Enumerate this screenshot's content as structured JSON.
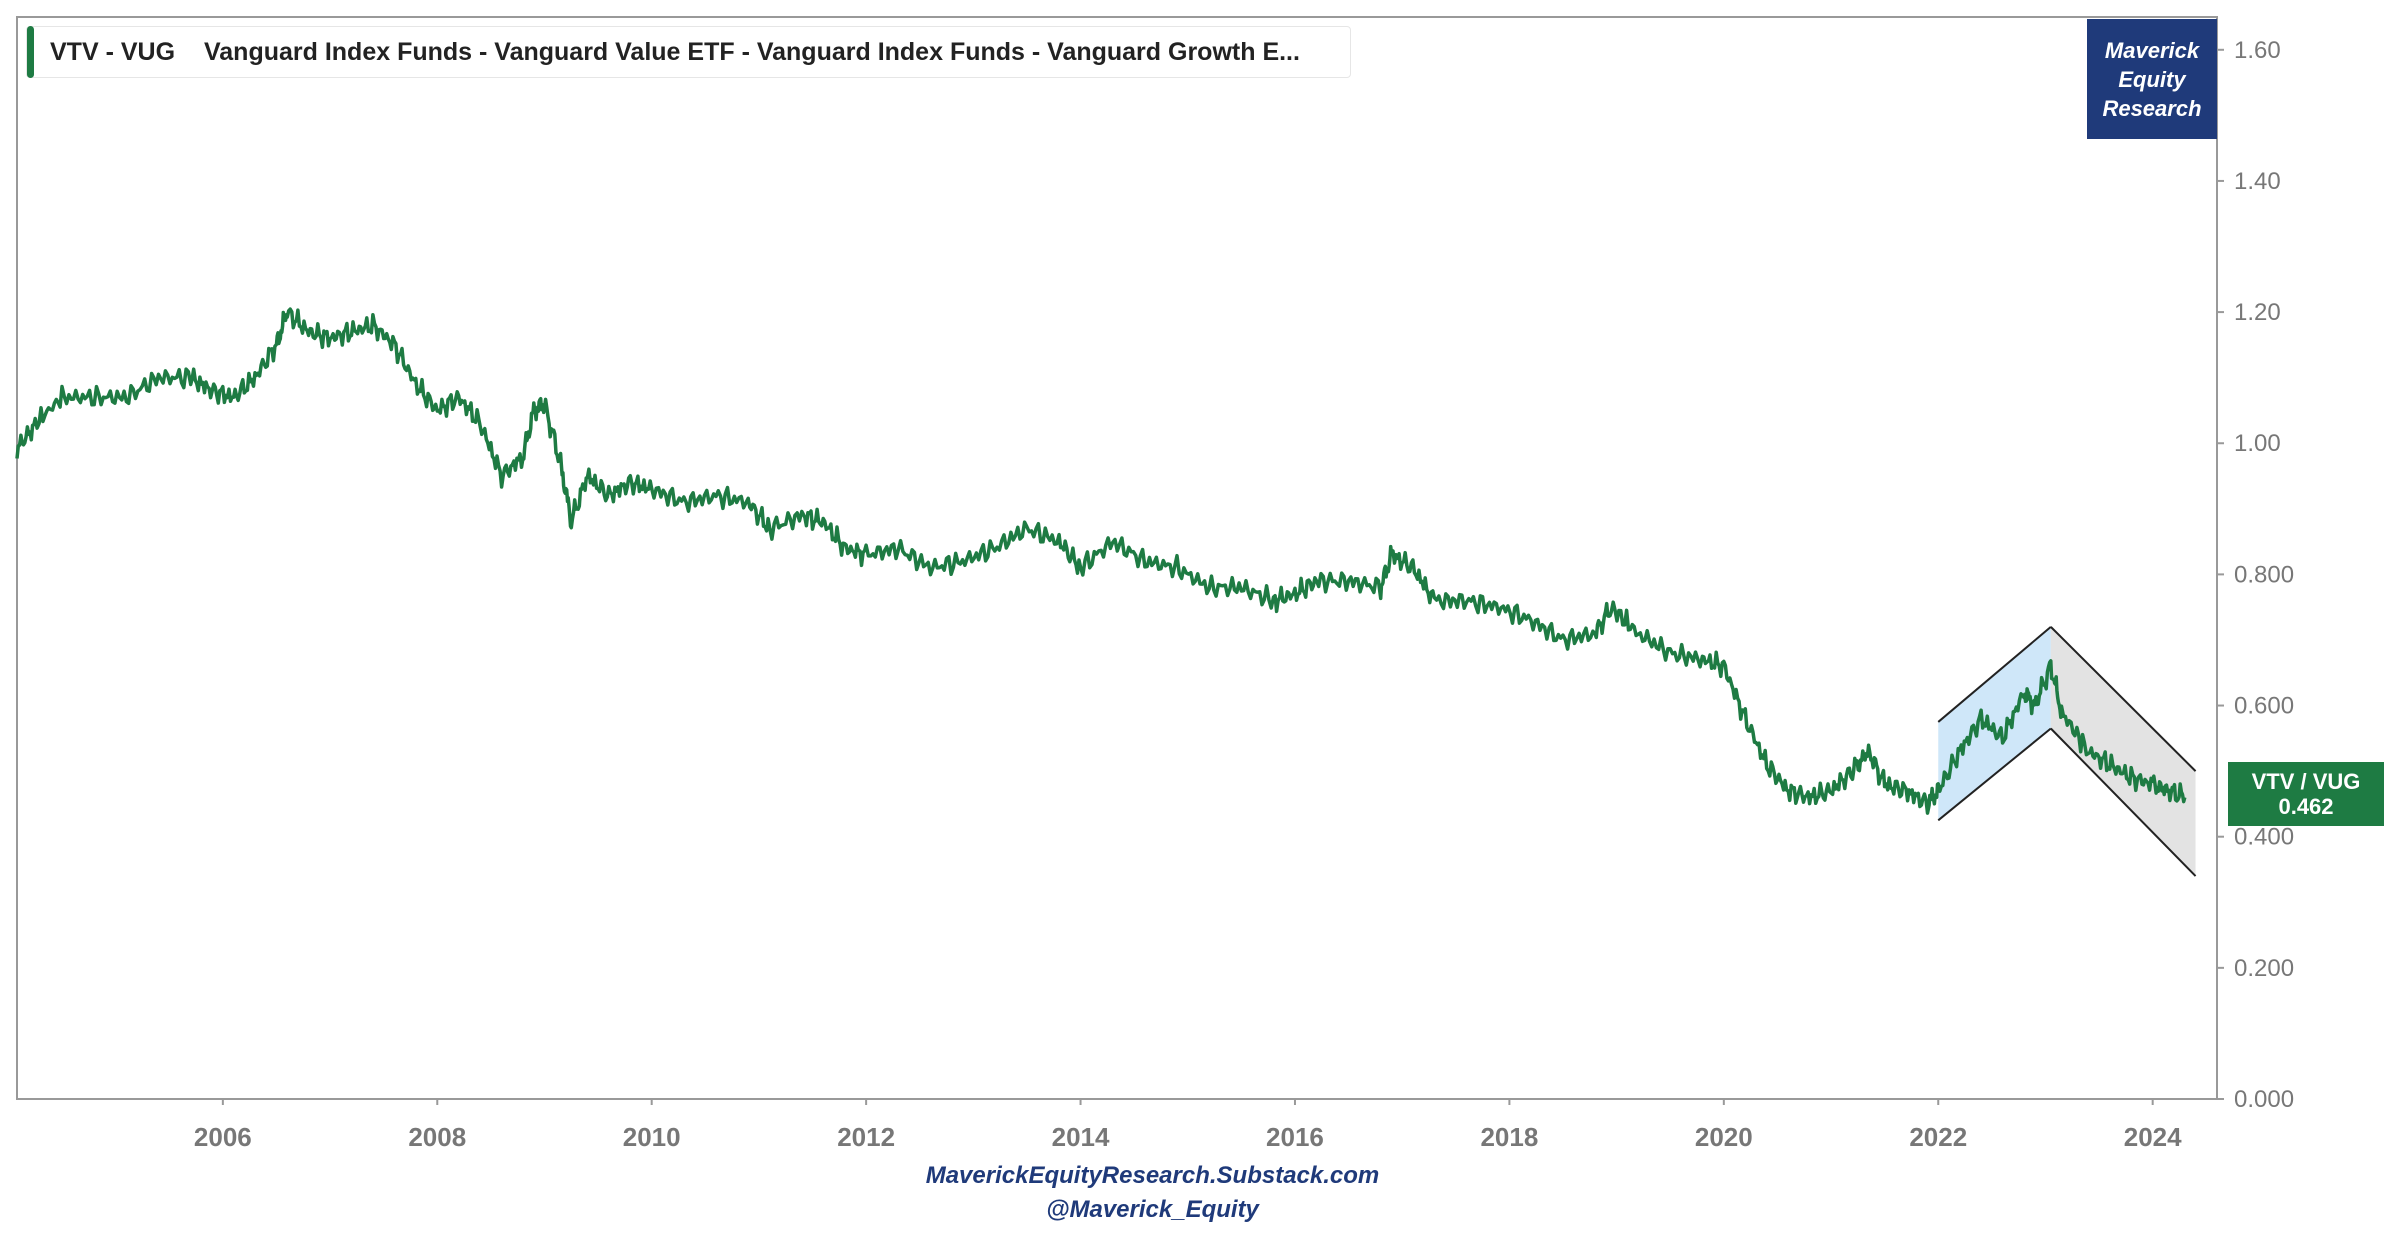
{
  "legend": {
    "ticker": "VTV - VUG",
    "name": "Vanguard Index Funds - Vanguard Value ETF - Vanguard Index Funds - Vanguard Growth E...",
    "color": "#1e7b43"
  },
  "brand": {
    "line1": "Maverick",
    "line2": "Equity",
    "line3": "Research",
    "color": "#1f3a7a"
  },
  "value_tag": {
    "label": "VTV / VUG",
    "value": "0.462"
  },
  "footer": {
    "line1": "MaverickEquityResearch.Substack.com",
    "line2": "@Maverick_Equity"
  },
  "chart_data": {
    "type": "line",
    "series": [
      {
        "name": "VTV / VUG",
        "color": "#1e7b43",
        "points": [
          [
            2004.08,
            0.99
          ],
          [
            2004.25,
            1.03
          ],
          [
            2004.5,
            1.07
          ],
          [
            2004.8,
            1.07
          ],
          [
            2005.1,
            1.07
          ],
          [
            2005.4,
            1.1
          ],
          [
            2005.7,
            1.1
          ],
          [
            2005.9,
            1.08
          ],
          [
            2006.1,
            1.07
          ],
          [
            2006.3,
            1.1
          ],
          [
            2006.5,
            1.15
          ],
          [
            2006.6,
            1.2
          ],
          [
            2006.8,
            1.17
          ],
          [
            2007.0,
            1.16
          ],
          [
            2007.2,
            1.17
          ],
          [
            2007.4,
            1.18
          ],
          [
            2007.6,
            1.15
          ],
          [
            2007.8,
            1.09
          ],
          [
            2008.0,
            1.05
          ],
          [
            2008.2,
            1.07
          ],
          [
            2008.4,
            1.03
          ],
          [
            2008.6,
            0.95
          ],
          [
            2008.8,
            0.98
          ],
          [
            2008.9,
            1.05
          ],
          [
            2009.0,
            1.06
          ],
          [
            2009.15,
            0.97
          ],
          [
            2009.25,
            0.88
          ],
          [
            2009.4,
            0.95
          ],
          [
            2009.6,
            0.92
          ],
          [
            2009.8,
            0.94
          ],
          [
            2010.0,
            0.93
          ],
          [
            2010.3,
            0.91
          ],
          [
            2010.6,
            0.92
          ],
          [
            2010.9,
            0.91
          ],
          [
            2011.1,
            0.87
          ],
          [
            2011.4,
            0.89
          ],
          [
            2011.6,
            0.88
          ],
          [
            2011.8,
            0.84
          ],
          [
            2012.0,
            0.83
          ],
          [
            2012.3,
            0.84
          ],
          [
            2012.6,
            0.81
          ],
          [
            2012.9,
            0.82
          ],
          [
            2013.2,
            0.84
          ],
          [
            2013.5,
            0.87
          ],
          [
            2013.8,
            0.85
          ],
          [
            2014.0,
            0.81
          ],
          [
            2014.3,
            0.85
          ],
          [
            2014.6,
            0.82
          ],
          [
            2014.9,
            0.81
          ],
          [
            2015.2,
            0.78
          ],
          [
            2015.5,
            0.78
          ],
          [
            2015.8,
            0.76
          ],
          [
            2016.0,
            0.77
          ],
          [
            2016.2,
            0.79
          ],
          [
            2016.5,
            0.79
          ],
          [
            2016.8,
            0.78
          ],
          [
            2016.9,
            0.83
          ],
          [
            2017.1,
            0.81
          ],
          [
            2017.3,
            0.76
          ],
          [
            2017.6,
            0.76
          ],
          [
            2017.9,
            0.75
          ],
          [
            2018.2,
            0.73
          ],
          [
            2018.5,
            0.7
          ],
          [
            2018.8,
            0.71
          ],
          [
            2018.95,
            0.75
          ],
          [
            2019.2,
            0.71
          ],
          [
            2019.5,
            0.68
          ],
          [
            2019.8,
            0.67
          ],
          [
            2020.0,
            0.66
          ],
          [
            2020.2,
            0.58
          ],
          [
            2020.4,
            0.51
          ],
          [
            2020.6,
            0.47
          ],
          [
            2020.8,
            0.46
          ],
          [
            2021.0,
            0.47
          ],
          [
            2021.2,
            0.5
          ],
          [
            2021.35,
            0.53
          ],
          [
            2021.5,
            0.48
          ],
          [
            2021.7,
            0.47
          ],
          [
            2021.9,
            0.45
          ],
          [
            2022.0,
            0.47
          ],
          [
            2022.2,
            0.53
          ],
          [
            2022.4,
            0.58
          ],
          [
            2022.6,
            0.55
          ],
          [
            2022.8,
            0.62
          ],
          [
            2022.9,
            0.6
          ],
          [
            2023.05,
            0.66
          ],
          [
            2023.15,
            0.59
          ],
          [
            2023.4,
            0.53
          ],
          [
            2023.6,
            0.51
          ],
          [
            2023.8,
            0.49
          ],
          [
            2024.0,
            0.48
          ],
          [
            2024.15,
            0.47
          ],
          [
            2024.3,
            0.46
          ]
        ]
      }
    ],
    "annotations": [
      {
        "type": "channel",
        "color": "#bfdff7",
        "upper": [
          [
            2022.0,
            0.575
          ],
          [
            2023.05,
            0.72
          ]
        ],
        "lower": [
          [
            2022.0,
            0.425
          ],
          [
            2023.05,
            0.565
          ]
        ]
      },
      {
        "type": "channel",
        "color": "#d9d9d9",
        "upper": [
          [
            2023.05,
            0.72
          ],
          [
            2024.4,
            0.5
          ]
        ],
        "lower": [
          [
            2023.05,
            0.565
          ],
          [
            2024.4,
            0.34
          ]
        ]
      }
    ],
    "xlim": [
      2004.08,
      2024.6
    ],
    "ylim": [
      0,
      1.65
    ],
    "x_ticks": [
      "2006",
      "2008",
      "2010",
      "2012",
      "2014",
      "2016",
      "2018",
      "2020",
      "2022",
      "2024"
    ],
    "y_ticks": [
      "0.000",
      "0.200",
      "0.400",
      "0.600",
      "0.800",
      "1.00",
      "1.20",
      "1.40",
      "1.60"
    ],
    "grid": false
  }
}
